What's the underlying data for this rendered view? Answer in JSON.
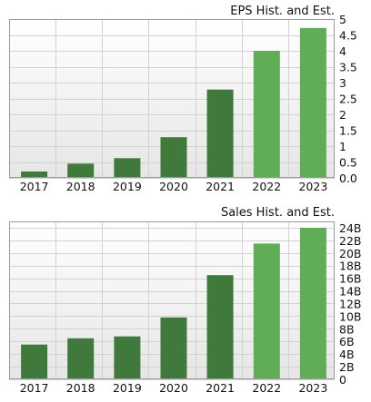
{
  "colors": {
    "historical": "#3f7a3c",
    "estimate": "#5fad56",
    "plot_bg_top": "#ffffff",
    "plot_bg_bottom": "#e6e6e6",
    "grid": "#d2d2d2",
    "frame": "#9a9a9a"
  },
  "chart_data": [
    {
      "type": "bar",
      "title": "EPS Hist. and Est.",
      "categories": [
        "2017",
        "2018",
        "2019",
        "2020",
        "2021",
        "2022",
        "2023"
      ],
      "values": [
        0.2,
        0.45,
        0.62,
        1.28,
        2.78,
        4.0,
        4.72
      ],
      "estimate_from_index": 5,
      "ylim": [
        0,
        5
      ],
      "yticks": [
        0,
        0.5,
        1,
        1.5,
        2,
        2.5,
        3,
        3.5,
        4,
        4.5,
        5
      ],
      "yticklabels": [
        "0.0",
        "0.5",
        "1",
        "1.5",
        "2",
        "2.5",
        "3",
        "3.5",
        "4",
        "4.5",
        "5"
      ],
      "grid": true,
      "y_axis_side": "right"
    },
    {
      "type": "bar",
      "title": "Sales Hist. and Est.",
      "categories": [
        "2017",
        "2018",
        "2019",
        "2020",
        "2021",
        "2022",
        "2023"
      ],
      "values": [
        5.5,
        6.5,
        6.8,
        9.8,
        16.5,
        21.5,
        24.0
      ],
      "value_unit": "B",
      "estimate_from_index": 5,
      "ylim": [
        0,
        25
      ],
      "yticks": [
        0,
        2,
        4,
        6,
        8,
        10,
        12,
        14,
        16,
        18,
        20,
        22,
        24
      ],
      "yticklabels": [
        "0",
        "2B",
        "4B",
        "6B",
        "8B",
        "10B",
        "12B",
        "14B",
        "16B",
        "18B",
        "20B",
        "22B",
        "24B"
      ],
      "grid": true,
      "y_axis_side": "right"
    }
  ]
}
